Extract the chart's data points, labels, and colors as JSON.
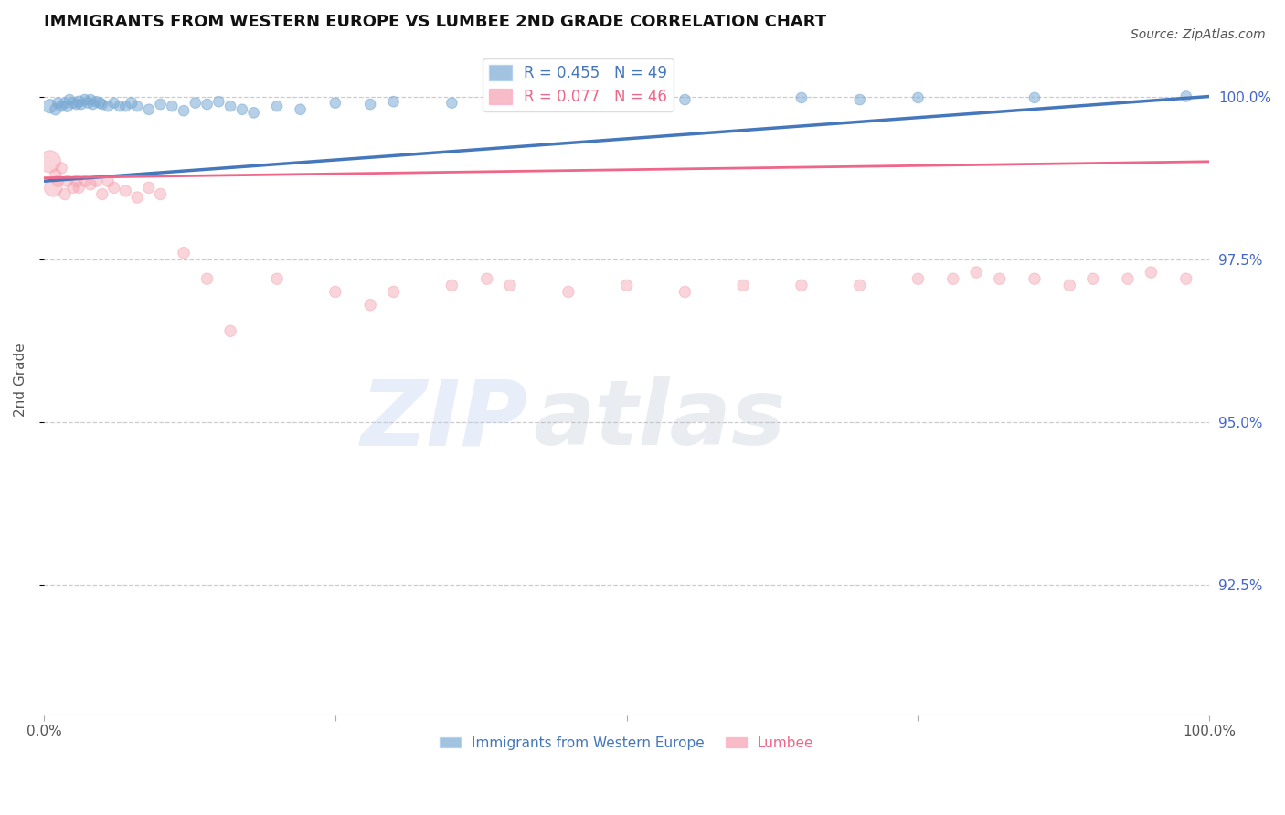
{
  "title": "IMMIGRANTS FROM WESTERN EUROPE VS LUMBEE 2ND GRADE CORRELATION CHART",
  "source": "Source: ZipAtlas.com",
  "ylabel": "2nd Grade",
  "ylabel_right_ticks": [
    "92.5%",
    "95.0%",
    "97.5%",
    "100.0%"
  ],
  "ylabel_right_values": [
    0.925,
    0.95,
    0.975,
    1.0
  ],
  "xlim": [
    0.0,
    1.0
  ],
  "ylim": [
    0.905,
    1.008
  ],
  "legend_blue_r": "R = 0.455",
  "legend_blue_n": "N = 49",
  "legend_pink_r": "R = 0.077",
  "legend_pink_n": "N = 46",
  "blue_color": "#7AAAD4",
  "pink_color": "#F4A0B0",
  "blue_line_color": "#4477BB",
  "pink_line_color": "#EE6688",
  "blue_scatter_x": [
    0.005,
    0.01,
    0.012,
    0.015,
    0.018,
    0.02,
    0.022,
    0.025,
    0.028,
    0.03,
    0.032,
    0.035,
    0.038,
    0.04,
    0.042,
    0.045,
    0.048,
    0.05,
    0.055,
    0.06,
    0.065,
    0.07,
    0.075,
    0.08,
    0.09,
    0.1,
    0.11,
    0.12,
    0.13,
    0.14,
    0.15,
    0.16,
    0.17,
    0.18,
    0.2,
    0.22,
    0.25,
    0.28,
    0.3,
    0.35,
    0.4,
    0.45,
    0.5,
    0.55,
    0.65,
    0.7,
    0.75,
    0.85,
    0.98
  ],
  "blue_scatter_y": [
    0.9985,
    0.998,
    0.999,
    0.9985,
    0.999,
    0.9985,
    0.9995,
    0.999,
    0.9988,
    0.9992,
    0.9988,
    0.9995,
    0.999,
    0.9995,
    0.9988,
    0.9992,
    0.999,
    0.9988,
    0.9985,
    0.999,
    0.9985,
    0.9985,
    0.999,
    0.9985,
    0.998,
    0.9988,
    0.9985,
    0.9978,
    0.999,
    0.9988,
    0.9992,
    0.9985,
    0.998,
    0.9975,
    0.9985,
    0.998,
    0.999,
    0.9988,
    0.9992,
    0.999,
    0.9992,
    0.9995,
    0.9992,
    0.9995,
    0.9998,
    0.9995,
    0.9998,
    0.9998,
    1.0
  ],
  "blue_scatter_s": [
    120,
    80,
    70,
    70,
    70,
    80,
    70,
    70,
    70,
    80,
    70,
    70,
    70,
    70,
    70,
    70,
    70,
    70,
    70,
    70,
    70,
    70,
    80,
    70,
    70,
    70,
    70,
    70,
    70,
    70,
    70,
    70,
    70,
    70,
    70,
    70,
    70,
    70,
    70,
    70,
    70,
    70,
    70,
    70,
    70,
    70,
    70,
    70,
    70
  ],
  "pink_scatter_x": [
    0.005,
    0.008,
    0.01,
    0.012,
    0.015,
    0.018,
    0.02,
    0.025,
    0.028,
    0.03,
    0.035,
    0.04,
    0.045,
    0.05,
    0.055,
    0.06,
    0.07,
    0.08,
    0.09,
    0.1,
    0.12,
    0.14,
    0.16,
    0.2,
    0.25,
    0.28,
    0.3,
    0.35,
    0.38,
    0.4,
    0.45,
    0.5,
    0.55,
    0.6,
    0.65,
    0.7,
    0.75,
    0.78,
    0.8,
    0.82,
    0.85,
    0.88,
    0.9,
    0.93,
    0.95,
    0.98
  ],
  "pink_scatter_y": [
    0.99,
    0.986,
    0.988,
    0.987,
    0.989,
    0.985,
    0.987,
    0.986,
    0.987,
    0.986,
    0.987,
    0.9865,
    0.987,
    0.985,
    0.987,
    0.986,
    0.9855,
    0.9845,
    0.986,
    0.985,
    0.976,
    0.972,
    0.964,
    0.972,
    0.97,
    0.968,
    0.97,
    0.971,
    0.972,
    0.971,
    0.97,
    0.971,
    0.97,
    0.971,
    0.971,
    0.971,
    0.972,
    0.972,
    0.973,
    0.972,
    0.972,
    0.971,
    0.972,
    0.972,
    0.973,
    0.972
  ],
  "pink_scatter_s": [
    300,
    200,
    80,
    80,
    80,
    80,
    80,
    80,
    80,
    80,
    80,
    80,
    80,
    80,
    80,
    80,
    80,
    80,
    80,
    80,
    80,
    80,
    80,
    80,
    80,
    80,
    80,
    80,
    80,
    80,
    80,
    80,
    80,
    80,
    80,
    80,
    80,
    80,
    80,
    80,
    80,
    80,
    80,
    80,
    80,
    80
  ],
  "blue_trend_x": [
    0.0,
    1.0
  ],
  "blue_trend_y": [
    0.987,
    1.0
  ],
  "pink_trend_x": [
    0.0,
    1.0
  ],
  "pink_trend_y": [
    0.9875,
    0.99
  ],
  "grid_yticks": [
    0.925,
    0.95,
    0.975,
    1.0
  ],
  "grid_color": "#CCCCCC",
  "bg_color": "#FFFFFF",
  "watermark_zip": "ZIP",
  "watermark_atlas": "atlas",
  "bottom_legend_labels": [
    "Immigrants from Western Europe",
    "Lumbee"
  ]
}
